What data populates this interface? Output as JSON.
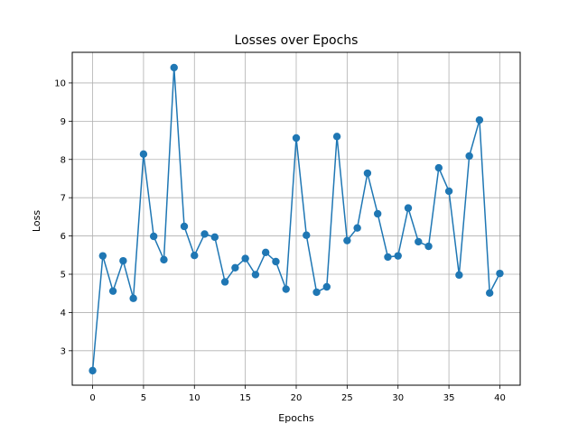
{
  "chart_data": {
    "type": "line",
    "title": "Losses over Epochs",
    "xlabel": "Epochs",
    "ylabel": "Loss",
    "xlim": [
      -2,
      42
    ],
    "ylim": [
      2.1,
      10.8
    ],
    "xticks": [
      0,
      5,
      10,
      15,
      20,
      25,
      30,
      35,
      40
    ],
    "yticks": [
      3,
      4,
      5,
      6,
      7,
      8,
      9,
      10
    ],
    "grid": true,
    "marker": "circle",
    "colors": {
      "series": "#1f77b4",
      "grid": "#b0b0b0",
      "axis": "#000000"
    },
    "series": [
      {
        "x": [
          0,
          1,
          2,
          3,
          4,
          5,
          6,
          7,
          8,
          9,
          10,
          11,
          12,
          13,
          14,
          15,
          16,
          17,
          18,
          19,
          20,
          21,
          22,
          23,
          24,
          25,
          26,
          27,
          28,
          29,
          30,
          31,
          32,
          33,
          34,
          35,
          36,
          37,
          38,
          39,
          40
        ],
        "values": [
          2.48,
          5.48,
          4.56,
          5.35,
          4.37,
          8.14,
          5.99,
          5.38,
          10.4,
          6.25,
          5.49,
          6.05,
          5.97,
          4.8,
          5.17,
          5.41,
          4.99,
          5.57,
          5.33,
          4.61,
          8.56,
          6.02,
          4.53,
          4.67,
          8.6,
          5.88,
          6.21,
          7.64,
          6.58,
          5.45,
          5.48,
          6.73,
          5.85,
          5.73,
          7.78,
          7.17,
          4.98,
          8.09,
          9.03,
          4.51,
          5.02
        ]
      }
    ]
  }
}
